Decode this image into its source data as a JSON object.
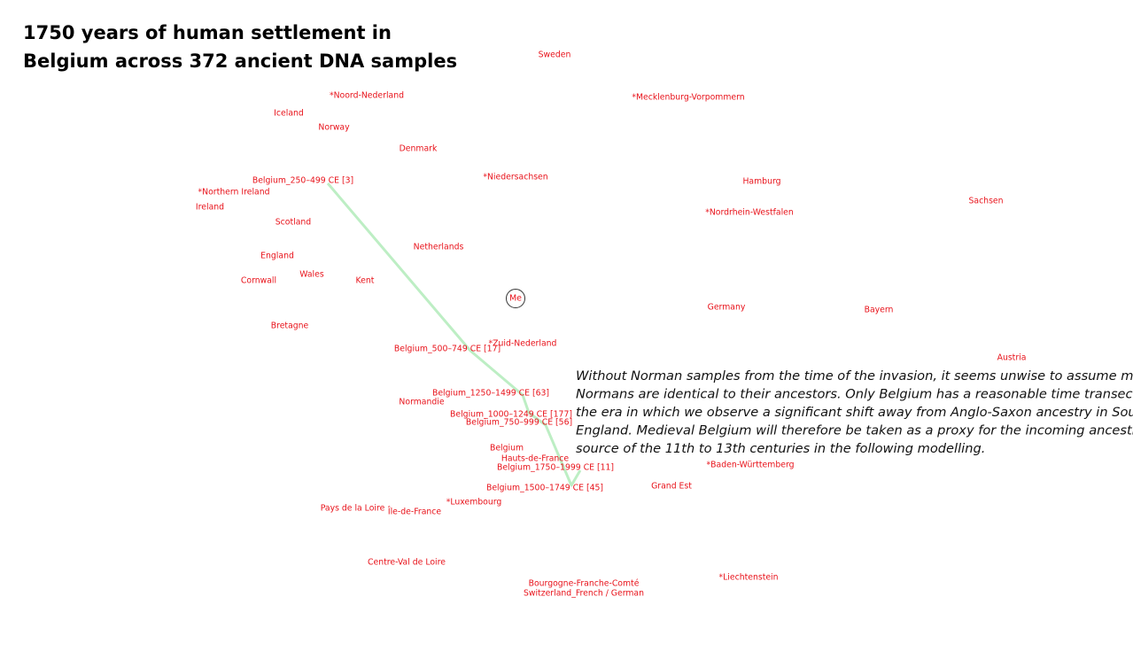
{
  "title": [
    "1750 years of human settlement in",
    "Belgium across 372 ancient DNA samples"
  ],
  "marker": "Me",
  "labels": [
    "Sweden",
    "*Noord-Nederland",
    "*Mecklenburg-Vorpommern",
    "Iceland",
    "Norway",
    "Denmark",
    "*Niedersachsen",
    "Belgium_250–499 CE [3]",
    "Hamburg",
    "*Northern Ireland",
    "Sachsen",
    "Ireland",
    "*Nordrhein-Westfalen",
    "Scotland",
    "Netherlands",
    "England",
    "Wales",
    "Cornwall",
    "Kent",
    "Germany",
    "Bayern",
    "Bretagne",
    "*Zuid-Nederland",
    "Belgium_500–749 CE [17]",
    "Austria",
    "Belgium_1250–1499 CE [63]",
    "Normandie",
    "Belgium_1000–1249 CE [177]",
    "Belgium_750–999 CE [56]",
    "Belgium",
    "Hauts-de-France",
    "*Baden-Württemberg",
    "Belgium_1750–1999 CE [11]",
    "Grand Est",
    "Belgium_1500–1749 CE [45]",
    "*Luxembourg",
    "Pays de la Loire",
    "Île-de-France",
    "Centre-Val de Loire",
    "*Liechtenstein",
    "Bourgogne-Franche-Comté",
    "Switzerland_French / German"
  ],
  "annotation": [
    "Without Norman samples from the time of the invasion, it seems unwise to assume modern",
    "Normans are identical to their ancestors. Only Belgium has a reasonable time transect from",
    "the era in which we observe a significant shift away from Anglo-Saxon ancestry in Southern",
    "England. Medieval Belgium will therefore be taken as a proxy for the incoming ancestral",
    "source of the 11th to 13th centuries in the following modelling."
  ]
}
